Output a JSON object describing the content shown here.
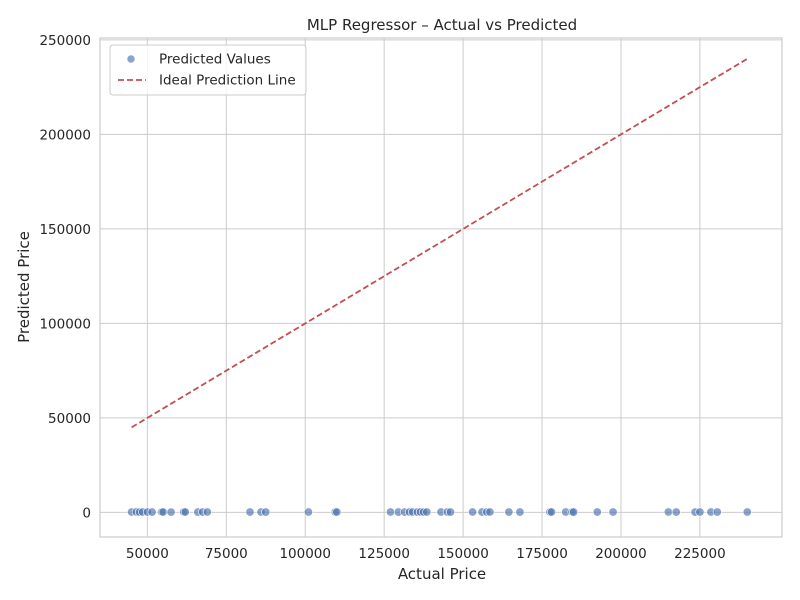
{
  "chart_data": {
    "type": "scatter",
    "title": "MLP Regressor – Actual vs Predicted",
    "xlabel": "Actual Price",
    "ylabel": "Predicted Price",
    "xlim": [
      35000,
      251000
    ],
    "ylim": [
      -13000,
      251000
    ],
    "xticks": [
      50000,
      75000,
      100000,
      125000,
      150000,
      175000,
      200000,
      225000
    ],
    "yticks": [
      0,
      50000,
      100000,
      150000,
      200000,
      250000
    ],
    "grid": true,
    "legend_position": "top-left",
    "colors": {
      "points": "#4c72b0",
      "ideal_line": "#c44e52",
      "grid": "#cccccc",
      "frame": "#cccccc"
    },
    "series": [
      {
        "name": "Predicted Values",
        "kind": "scatter",
        "x": [
          45000,
          46500,
          47500,
          48500,
          50000,
          51500,
          54500,
          55000,
          57500,
          61500,
          62000,
          66000,
          67500,
          69000,
          82500,
          86000,
          87500,
          101000,
          109500,
          110000,
          127000,
          129500,
          131500,
          133000,
          134000,
          135500,
          136500,
          137500,
          138500,
          143000,
          145000,
          146000,
          153000,
          156000,
          157500,
          158500,
          164500,
          168000,
          177500,
          178000,
          182500,
          184500,
          185000,
          192500,
          197500,
          215000,
          217500,
          223500,
          225000,
          228500,
          230500,
          240000
        ],
        "y": [
          200,
          250,
          180,
          220,
          210,
          190,
          230,
          200,
          180,
          240,
          210,
          190,
          200,
          220,
          200,
          210,
          190,
          230,
          200,
          240,
          210,
          190,
          200,
          230,
          210,
          190,
          220,
          200,
          240,
          210,
          200,
          190,
          220,
          200,
          210,
          230,
          200,
          190,
          210,
          200,
          220,
          210,
          190,
          200,
          230,
          210,
          200,
          190,
          220,
          210,
          200,
          230
        ]
      },
      {
        "name": "Ideal Prediction Line",
        "kind": "line",
        "style": "dashed",
        "x": [
          45000,
          240000
        ],
        "y": [
          45000,
          240000
        ]
      }
    ]
  }
}
